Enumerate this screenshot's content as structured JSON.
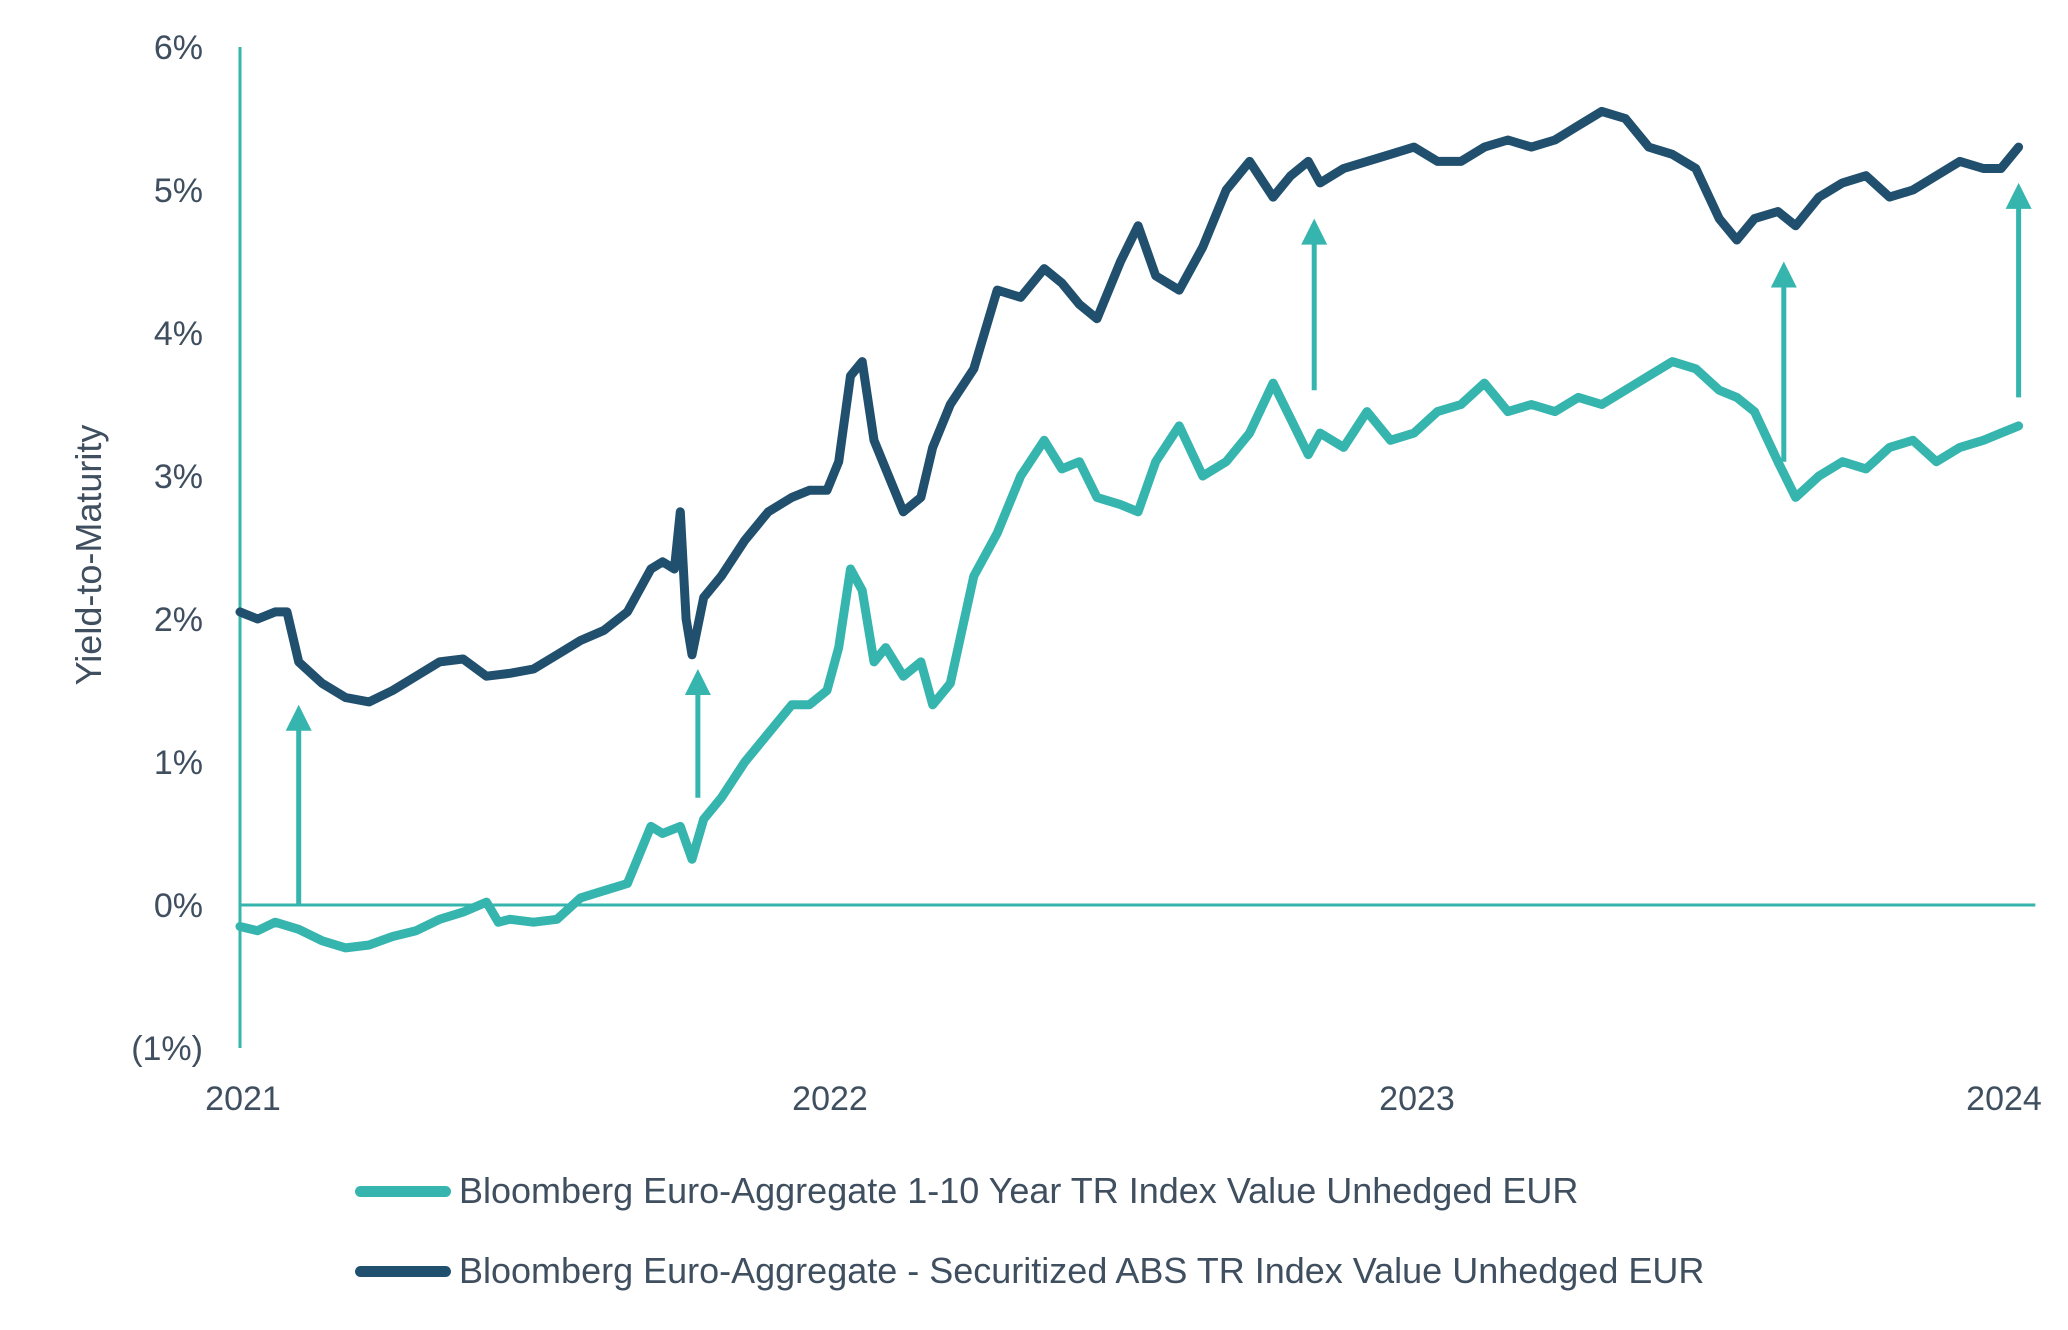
{
  "chart_data": {
    "type": "line",
    "title": "",
    "xlabel": "",
    "ylabel": "Yield-to-Maturity",
    "xlim": [
      2021,
      2024.05
    ],
    "ylim": [
      -1,
      6
    ],
    "grid": false,
    "legend_position": "bottom",
    "x_ticks": [
      {
        "value": 2021,
        "label": "2021"
      },
      {
        "value": 2022,
        "label": "2022"
      },
      {
        "value": 2023,
        "label": "2023"
      },
      {
        "value": 2024,
        "label": "2024"
      }
    ],
    "y_ticks": [
      {
        "value": 6,
        "label": "6%"
      },
      {
        "value": 5,
        "label": "5%"
      },
      {
        "value": 4,
        "label": "4%"
      },
      {
        "value": 3,
        "label": "3%"
      },
      {
        "value": 2,
        "label": "2%"
      },
      {
        "value": 1,
        "label": "1%"
      },
      {
        "value": 0,
        "label": "0%"
      },
      {
        "value": -1,
        "label": "(1%)"
      }
    ],
    "series": [
      {
        "name": "Bloomberg Euro-Aggregate 1-10 Year TR Index Value Unhedged EUR",
        "color": "#35b5ae",
        "x": [
          2021.0,
          2021.03,
          2021.06,
          2021.1,
          2021.14,
          2021.18,
          2021.22,
          2021.26,
          2021.3,
          2021.34,
          2021.38,
          2021.42,
          2021.44,
          2021.46,
          2021.5,
          2021.54,
          2021.58,
          2021.62,
          2021.66,
          2021.7,
          2021.72,
          2021.75,
          2021.77,
          2021.79,
          2021.82,
          2021.86,
          2021.9,
          2021.94,
          2021.97,
          2022.0,
          2022.02,
          2022.04,
          2022.06,
          2022.08,
          2022.1,
          2022.13,
          2022.16,
          2022.18,
          2022.21,
          2022.25,
          2022.29,
          2022.33,
          2022.37,
          2022.4,
          2022.43,
          2022.46,
          2022.5,
          2022.53,
          2022.56,
          2022.6,
          2022.64,
          2022.68,
          2022.72,
          2022.76,
          2022.79,
          2022.82,
          2022.84,
          2022.88,
          2022.92,
          2022.96,
          2023.0,
          2023.04,
          2023.08,
          2023.12,
          2023.16,
          2023.2,
          2023.24,
          2023.28,
          2023.32,
          2023.36,
          2023.4,
          2023.44,
          2023.48,
          2023.52,
          2023.55,
          2023.58,
          2023.62,
          2023.65,
          2023.69,
          2023.73,
          2023.77,
          2023.81,
          2023.85,
          2023.89,
          2023.93,
          2023.97,
          2024.0,
          2024.03
        ],
        "values": [
          -0.15,
          -0.18,
          -0.12,
          -0.17,
          -0.25,
          -0.3,
          -0.28,
          -0.22,
          -0.18,
          -0.1,
          -0.05,
          0.02,
          -0.12,
          -0.1,
          -0.12,
          -0.1,
          0.05,
          0.1,
          0.15,
          0.55,
          0.5,
          0.55,
          0.32,
          0.6,
          0.75,
          1.0,
          1.2,
          1.4,
          1.4,
          1.5,
          1.8,
          2.35,
          2.2,
          1.7,
          1.8,
          1.6,
          1.7,
          1.4,
          1.55,
          2.3,
          2.6,
          3.0,
          3.25,
          3.05,
          3.1,
          2.85,
          2.8,
          2.75,
          3.1,
          3.35,
          3.0,
          3.1,
          3.3,
          3.65,
          3.4,
          3.15,
          3.3,
          3.2,
          3.45,
          3.25,
          3.3,
          3.45,
          3.5,
          3.65,
          3.45,
          3.5,
          3.45,
          3.55,
          3.5,
          3.6,
          3.7,
          3.8,
          3.75,
          3.6,
          3.55,
          3.45,
          3.1,
          2.85,
          3.0,
          3.1,
          3.05,
          3.2,
          3.25,
          3.1,
          3.2,
          3.25,
          3.3,
          3.35
        ]
      },
      {
        "name": "Bloomberg Euro-Aggregate - Securitized ABS TR Index Value Unhedged EUR",
        "color": "#21506e",
        "x": [
          2021.0,
          2021.03,
          2021.06,
          2021.08,
          2021.1,
          2021.14,
          2021.18,
          2021.22,
          2021.26,
          2021.3,
          2021.34,
          2021.38,
          2021.42,
          2021.46,
          2021.5,
          2021.54,
          2021.58,
          2021.62,
          2021.66,
          2021.7,
          2021.72,
          2021.74,
          2021.75,
          2021.76,
          2021.77,
          2021.79,
          2021.82,
          2021.86,
          2021.9,
          2021.94,
          2021.97,
          2022.0,
          2022.02,
          2022.04,
          2022.06,
          2022.08,
          2022.1,
          2022.13,
          2022.16,
          2022.18,
          2022.21,
          2022.25,
          2022.29,
          2022.33,
          2022.37,
          2022.4,
          2022.43,
          2022.46,
          2022.5,
          2022.53,
          2022.56,
          2022.6,
          2022.64,
          2022.68,
          2022.72,
          2022.76,
          2022.79,
          2022.82,
          2022.84,
          2022.88,
          2022.92,
          2022.96,
          2023.0,
          2023.04,
          2023.08,
          2023.12,
          2023.16,
          2023.2,
          2023.24,
          2023.28,
          2023.32,
          2023.36,
          2023.4,
          2023.44,
          2023.48,
          2023.52,
          2023.55,
          2023.58,
          2023.62,
          2023.65,
          2023.69,
          2023.73,
          2023.77,
          2023.81,
          2023.85,
          2023.89,
          2023.93,
          2023.97,
          2024.0,
          2024.03
        ],
        "values": [
          2.05,
          2.0,
          2.05,
          2.05,
          1.7,
          1.55,
          1.45,
          1.42,
          1.5,
          1.6,
          1.7,
          1.72,
          1.6,
          1.62,
          1.65,
          1.75,
          1.85,
          1.92,
          2.05,
          2.35,
          2.4,
          2.35,
          2.75,
          2.0,
          1.75,
          2.15,
          2.3,
          2.55,
          2.75,
          2.85,
          2.9,
          2.9,
          3.1,
          3.7,
          3.8,
          3.25,
          3.05,
          2.75,
          2.85,
          3.2,
          3.5,
          3.75,
          4.3,
          4.25,
          4.45,
          4.35,
          4.2,
          4.1,
          4.5,
          4.75,
          4.4,
          4.3,
          4.6,
          5.0,
          5.2,
          4.95,
          5.1,
          5.2,
          5.05,
          5.15,
          5.2,
          5.25,
          5.3,
          5.2,
          5.2,
          5.3,
          5.35,
          5.3,
          5.35,
          5.45,
          5.55,
          5.5,
          5.3,
          5.25,
          5.15,
          4.8,
          4.65,
          4.8,
          4.85,
          4.75,
          4.95,
          5.05,
          5.1,
          4.95,
          5.0,
          5.1,
          5.2,
          5.15,
          5.15,
          5.3
        ]
      }
    ],
    "annotations": [
      {
        "type": "arrow",
        "x": 2021.1,
        "from": 0.0,
        "to": 1.4
      },
      {
        "type": "arrow",
        "x": 2021.78,
        "from": 0.75,
        "to": 1.65
      },
      {
        "type": "arrow",
        "x": 2022.83,
        "from": 3.6,
        "to": 4.8
      },
      {
        "type": "arrow",
        "x": 2023.63,
        "from": 3.1,
        "to": 4.5
      },
      {
        "type": "arrow",
        "x": 2024.03,
        "from": 3.55,
        "to": 5.05
      }
    ],
    "axis_color": "#35b5ae",
    "arrow_color": "#35b5ae"
  },
  "legend": {
    "items": [
      {
        "label": "Bloomberg Euro-Aggregate 1-10 Year TR Index Value Unhedged EUR",
        "color": "#35b5ae"
      },
      {
        "label": "Bloomberg Euro-Aggregate - Securitized ABS TR Index Value Unhedged EUR",
        "color": "#21506e"
      }
    ]
  }
}
